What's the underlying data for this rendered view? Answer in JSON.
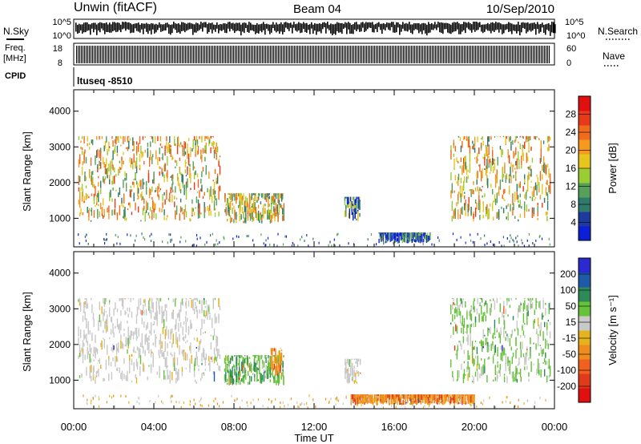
{
  "header": {
    "station": "Unwin (fitACF)",
    "beam": "Beam 04",
    "date": "10/Sep/2010"
  },
  "panels": {
    "nsky": {
      "label": "N.Sky",
      "ticks": [
        "10^5",
        "10^0"
      ]
    },
    "nsearch": {
      "label": "N.Search",
      "ticks": [
        "10^5",
        "10^0"
      ]
    },
    "freq": {
      "label_line1": "Freq.",
      "label_line2": "[MHz]",
      "ticks": [
        "18",
        "8"
      ]
    },
    "nave": {
      "label": "Nave",
      "ticks": [
        "60",
        "0"
      ]
    },
    "cpid": {
      "label": "CPID",
      "value": "ltuseq -8510"
    }
  },
  "colors": {
    "power": [
      "#0a1fd6",
      "#1f3a9e",
      "#2f7a6a",
      "#56a05a",
      "#9acd32",
      "#e6c61e",
      "#f59a1e",
      "#f26a1e",
      "#e83a1a",
      "#e01010"
    ],
    "velocity": [
      "#2a2ad0",
      "#1e5aa8",
      "#2f8a5a",
      "#66c23a",
      "#c9c9c9",
      "#e6b21e",
      "#f08c1e",
      "#f0601e",
      "#e03a1a",
      "#e01010"
    ],
    "ground": "#808080"
  },
  "chart_data": [
    {
      "type": "heatmap",
      "name": "power-panel",
      "ylabel": "Slant Range [km]",
      "ylim": [
        200,
        4600
      ],
      "yticks": [
        1000,
        2000,
        3000,
        4000
      ],
      "xlim": [
        0,
        24
      ],
      "colorbar": {
        "label": "Power [dB]",
        "range": [
          0,
          32
        ],
        "ticks": [
          "4",
          "8",
          "12",
          "16",
          "20",
          "24",
          "28"
        ]
      },
      "regions": [
        {
          "t": [
            0.2,
            7.3
          ],
          "r": [
            900,
            3300
          ],
          "level": 0.55
        },
        {
          "t": [
            7.5,
            10.5
          ],
          "r": [
            850,
            1700
          ],
          "level": 0.5
        },
        {
          "t": [
            13.5,
            14.3
          ],
          "r": [
            900,
            1600
          ],
          "level": 0.2
        },
        {
          "t": [
            15.2,
            17.8
          ],
          "r": [
            300,
            600
          ],
          "level": 0.15
        },
        {
          "t": [
            18.8,
            23.8
          ],
          "r": [
            900,
            3300
          ],
          "level": 0.55
        }
      ]
    },
    {
      "type": "heatmap",
      "name": "velocity-panel",
      "ylabel": "Slant Range [km]",
      "ylim": [
        200,
        4600
      ],
      "yticks": [
        1000,
        2000,
        3000,
        4000
      ],
      "xlim": [
        0,
        24
      ],
      "xticks": [
        "00:00",
        "04:00",
        "08:00",
        "12:00",
        "16:00",
        "20:00",
        "00:00"
      ],
      "xlabel": "Time UT",
      "colorbar": {
        "label": "Velocity [m s⁻¹]",
        "range": [
          -250,
          250
        ],
        "ticks": [
          "200",
          "100",
          "50",
          "15",
          "-15",
          "-50",
          "-100",
          "-200"
        ]
      },
      "regions": [
        {
          "t": [
            0.2,
            7.3
          ],
          "r": [
            900,
            3300
          ],
          "level": 0.0
        },
        {
          "t": [
            7.5,
            10.5
          ],
          "r": [
            850,
            1700
          ],
          "level": 0.3
        },
        {
          "t": [
            9.8,
            10.4
          ],
          "r": [
            1100,
            1900
          ],
          "level": -0.4
        },
        {
          "t": [
            13.5,
            14.3
          ],
          "r": [
            900,
            1600
          ],
          "level": 0.0
        },
        {
          "t": [
            13.8,
            20.0
          ],
          "r": [
            300,
            600
          ],
          "level": -0.45
        },
        {
          "t": [
            18.8,
            23.8
          ],
          "r": [
            900,
            3300
          ],
          "level": 0.2
        }
      ]
    }
  ]
}
